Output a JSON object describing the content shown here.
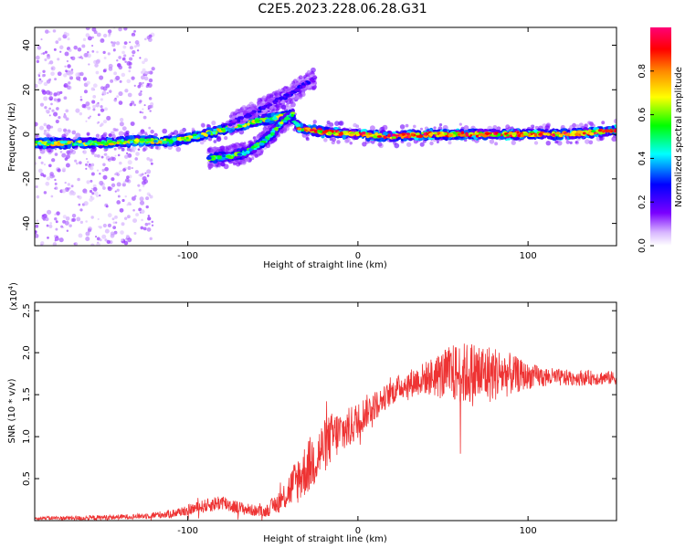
{
  "title": "C2E5.2023.228.06.28.G31",
  "chart_data": [
    {
      "type": "heatmap",
      "title": "C2E5.2023.228.06.28.G31",
      "xlabel": "Height of straight line (km)",
      "ylabel": "Frequency (Hz)",
      "xlim": [
        -190,
        152
      ],
      "ylim": [
        -50,
        48
      ],
      "x_ticks": [
        -100,
        0,
        100
      ],
      "x_tick_labels": [
        "-100",
        "0",
        "100"
      ],
      "y_ticks": [
        -40,
        -20,
        0,
        20,
        40
      ],
      "y_tick_labels": [
        "-40",
        "-20",
        "0",
        "20",
        "40"
      ],
      "colorbar": {
        "label": "Normalized spectral amplitude",
        "range": [
          0,
          1
        ],
        "ticks": [
          0.0,
          0.2,
          0.4,
          0.6,
          0.8
        ],
        "tick_labels": [
          "0.0",
          "0.2",
          "0.4",
          "0.6",
          "0.8"
        ]
      },
      "traces": [
        {
          "name": "main",
          "points": [
            [
              -190,
              -4
            ],
            [
              -170,
              -4
            ],
            [
              -150,
              -4
            ],
            [
              -130,
              -3
            ],
            [
              -110,
              -3
            ],
            [
              -100,
              -2
            ],
            [
              -90,
              0
            ],
            [
              -80,
              2
            ],
            [
              -70,
              4
            ],
            [
              -60,
              6
            ],
            [
              -50,
              7
            ],
            [
              -40,
              9
            ],
            [
              -35,
              3
            ],
            [
              -30,
              2
            ],
            [
              -20,
              1
            ],
            [
              0,
              0
            ],
            [
              20,
              -1
            ],
            [
              40,
              0
            ],
            [
              60,
              0
            ],
            [
              80,
              0
            ],
            [
              100,
              0
            ],
            [
              120,
              0
            ],
            [
              140,
              1
            ],
            [
              152,
              2
            ]
          ],
          "amplitude": 0.7
        },
        {
          "name": "upper branch",
          "points": [
            [
              -75,
              5
            ],
            [
              -60,
              10
            ],
            [
              -50,
              14
            ],
            [
              -40,
              18
            ],
            [
              -30,
              23
            ],
            [
              -25,
              25
            ]
          ],
          "amplitude": 0.25
        },
        {
          "name": "lower branch",
          "points": [
            [
              -88,
              -11
            ],
            [
              -75,
              -10
            ],
            [
              -65,
              -8
            ],
            [
              -55,
              -3
            ],
            [
              -45,
              5
            ],
            [
              -38,
              9
            ]
          ],
          "amplitude": 0.6
        }
      ]
    },
    {
      "type": "line",
      "xlabel": "Height of straight line (km)",
      "ylabel": "SNR (10 * v/v)",
      "multiplier_label": "(x10",
      "multiplier_exp": "4",
      "multiplier_close": ")",
      "color": "#ee3333",
      "xlim": [
        -190,
        152
      ],
      "ylim": [
        0,
        2.6
      ],
      "x_ticks": [
        -100,
        0,
        100
      ],
      "x_tick_labels": [
        "-100",
        "0",
        "100"
      ],
      "y_ticks": [
        0.5,
        1.0,
        1.5,
        2.0,
        2.5
      ],
      "y_tick_labels": [
        "0.5",
        "1.0",
        "1.5",
        "2.0",
        "2.5"
      ],
      "envelope": [
        {
          "x": -190,
          "y": 0.03,
          "noise": 0.02
        },
        {
          "x": -160,
          "y": 0.03,
          "noise": 0.03
        },
        {
          "x": -130,
          "y": 0.05,
          "noise": 0.03
        },
        {
          "x": -110,
          "y": 0.08,
          "noise": 0.05
        },
        {
          "x": -95,
          "y": 0.15,
          "noise": 0.07
        },
        {
          "x": -80,
          "y": 0.22,
          "noise": 0.1
        },
        {
          "x": -70,
          "y": 0.15,
          "noise": 0.08
        },
        {
          "x": -55,
          "y": 0.1,
          "noise": 0.06
        },
        {
          "x": -45,
          "y": 0.25,
          "noise": 0.15
        },
        {
          "x": -35,
          "y": 0.5,
          "noise": 0.3
        },
        {
          "x": -25,
          "y": 0.75,
          "noise": 0.35
        },
        {
          "x": -15,
          "y": 1.0,
          "noise": 0.3
        },
        {
          "x": -5,
          "y": 1.1,
          "noise": 0.25
        },
        {
          "x": 5,
          "y": 1.3,
          "noise": 0.2
        },
        {
          "x": 15,
          "y": 1.45,
          "noise": 0.15
        },
        {
          "x": 25,
          "y": 1.6,
          "noise": 0.15
        },
        {
          "x": 40,
          "y": 1.7,
          "noise": 0.2
        },
        {
          "x": 55,
          "y": 1.75,
          "noise": 0.35
        },
        {
          "x": 70,
          "y": 1.75,
          "noise": 0.4
        },
        {
          "x": 85,
          "y": 1.75,
          "noise": 0.3
        },
        {
          "x": 100,
          "y": 1.72,
          "noise": 0.15
        },
        {
          "x": 120,
          "y": 1.7,
          "noise": 0.1
        },
        {
          "x": 152,
          "y": 1.7,
          "noise": 0.08
        }
      ]
    }
  ]
}
